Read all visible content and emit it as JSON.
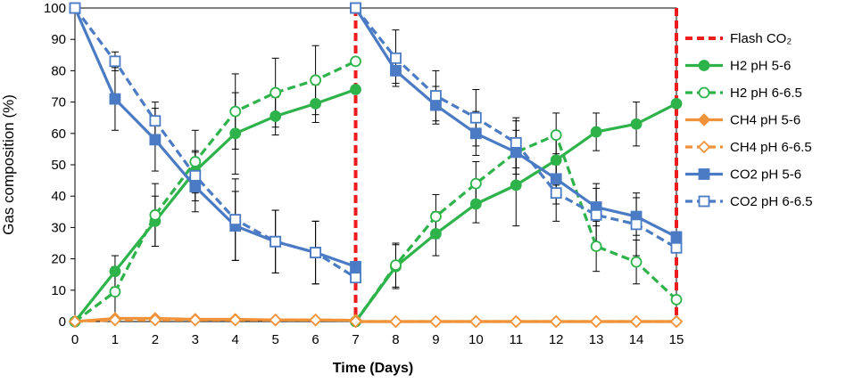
{
  "chart_data": {
    "type": "line",
    "title": "",
    "xlabel": "Time (Days)",
    "ylabel": "Gas composition (%)",
    "xlim": [
      0,
      15
    ],
    "ylim": [
      0,
      100
    ],
    "x_ticks": [
      "0",
      "1",
      "2",
      "3",
      "4",
      "5",
      "6",
      "7",
      "8",
      "9",
      "10",
      "11",
      "12",
      "13",
      "14",
      "15"
    ],
    "y_ticks": [
      "0",
      "10",
      "20",
      "30",
      "40",
      "50",
      "60",
      "70",
      "80",
      "90",
      "100"
    ],
    "legend_position": "right",
    "x": [
      0,
      1,
      2,
      3,
      4,
      5,
      6,
      7,
      7,
      8,
      9,
      10,
      11,
      12,
      13,
      14,
      15
    ],
    "flash_co2": {
      "name": "Flash CO₂",
      "color": "#ee1c1c",
      "x_positions": [
        7,
        15
      ]
    },
    "series": [
      {
        "name": "H2 pH 5-6",
        "color": "#2db34a",
        "marker": "circle-filled",
        "dashed": false,
        "values": [
          0,
          16,
          32,
          48,
          60,
          65.5,
          69.5,
          74,
          0,
          17.5,
          28,
          37.5,
          43.5,
          51.5,
          60.5,
          63,
          69.5
        ],
        "errors": [
          0,
          5,
          8,
          6,
          13,
          6,
          6,
          0,
          0,
          7,
          7,
          6,
          13,
          8,
          6,
          7,
          0
        ]
      },
      {
        "name": "H2 pH 6-6.5",
        "color": "#2db34a",
        "marker": "circle-open",
        "dashed": true,
        "values": [
          0,
          9.5,
          34,
          51,
          67,
          73,
          77,
          83,
          0,
          18,
          33.5,
          44,
          54,
          59.5,
          24,
          19,
          7
        ],
        "errors": [
          0,
          8,
          10,
          10,
          12,
          11,
          11,
          0,
          0,
          7,
          7,
          7,
          7,
          7,
          8,
          7,
          0
        ]
      },
      {
        "name": "CH4 pH 5-6",
        "color": "#f0923a",
        "marker": "diamond-filled",
        "dashed": false,
        "values": [
          0,
          1,
          1,
          0.7,
          0.7,
          0.5,
          0.5,
          0.4,
          0,
          0,
          0,
          0,
          0,
          0,
          0,
          0,
          0
        ],
        "errors": [
          0,
          0,
          0,
          0,
          0,
          0,
          0,
          0,
          0,
          0,
          0,
          0,
          0,
          0,
          0,
          0,
          0
        ]
      },
      {
        "name": "CH4 pH 6-6.5",
        "color": "#f0923a",
        "marker": "diamond-open",
        "dashed": true,
        "values": [
          0,
          0.5,
          0.5,
          0.5,
          0.5,
          0.5,
          0.5,
          0.4,
          0,
          0,
          0,
          0,
          0,
          0,
          0,
          0,
          0
        ],
        "errors": [
          0,
          0,
          0,
          0,
          0,
          0,
          0,
          0,
          0,
          0,
          0,
          0,
          0,
          0,
          0,
          0,
          0
        ]
      },
      {
        "name": "CO2 pH 5-6",
        "color": "#4a7bc4",
        "marker": "square-filled",
        "dashed": false,
        "values": [
          100,
          71,
          58,
          43,
          30.5,
          25.5,
          22,
          17.5,
          100,
          80,
          69,
          60,
          54,
          45.5,
          36.5,
          33.5,
          27
        ],
        "errors": [
          0,
          10,
          10,
          8,
          11,
          10,
          10,
          0,
          0,
          4,
          6,
          7,
          10,
          8,
          6,
          6,
          0
        ]
      },
      {
        "name": "CO2 pH 6-6.5",
        "color": "#4a7bc4",
        "marker": "square-open",
        "dashed": true,
        "values": [
          100,
          83,
          64,
          46.5,
          32.5,
          25.5,
          22,
          14,
          100,
          84,
          72,
          65,
          57,
          41,
          34,
          31,
          23.5
        ],
        "errors": [
          0,
          3,
          6,
          8,
          13,
          10,
          10,
          0,
          0,
          9,
          8,
          9,
          8,
          9,
          10,
          10,
          0
        ]
      }
    ]
  }
}
